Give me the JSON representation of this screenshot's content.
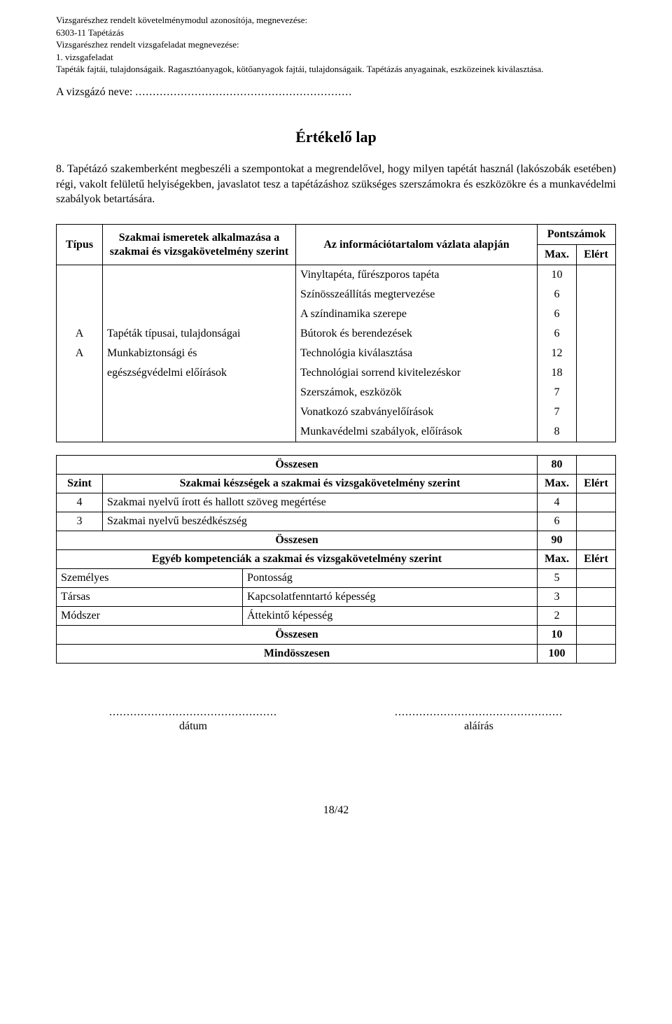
{
  "header": {
    "line1": "Vizsgarészhez rendelt követelménymodul azonosítója, megnevezése:",
    "line2": "6303-11 Tapétázás",
    "line3": "Vizsgarészhez rendelt vizsgafeladat megnevezése:",
    "line4": "1. vizsgafeladat",
    "line5": "Tapéták fajtái, tulajdonságaik. Ragasztóanyagok, kötőanyagok fajtái, tulajdonságaik. Tapétázás anyagainak, eszközeinek kiválasztása."
  },
  "candidate_label": "A vizsgázó neve:",
  "candidate_dotted": "..............................................................",
  "title": "Értékelő lap",
  "task": "8. Tapétázó szakemberként megbeszéli a szempontokat a megrendelővel, hogy milyen tapétát használ (lakószobák esetében) régi, vakolt felületű helyiségekben, javaslatot tesz a tapétázáshoz szükséges szerszámokra és eszközökre és a munkavédelmi szabályok betartására.",
  "t1": {
    "h_tip": "Típus",
    "h_sz": "Szakmai ismeretek alkalmazása a szakmai és vizsgakövetelmény szerint",
    "h_info": "Az információtartalom vázlata alapján",
    "h_pont": "Pontszámok",
    "h_max": "Max.",
    "h_el": "Elért",
    "rows": [
      {
        "tip": "",
        "sz": "",
        "info": "Vinyltapéta, fűrészporos tapéta",
        "max": "10"
      },
      {
        "tip": "",
        "sz": "",
        "info": "Színösszeállítás megtervezése",
        "max": "6"
      },
      {
        "tip": "",
        "sz": "",
        "info": "A színdinamika szerepe",
        "max": "6"
      },
      {
        "tip": "A",
        "sz": "Tapéták típusai, tulajdonságai",
        "info": "Bútorok és berendezések",
        "max": "6"
      },
      {
        "tip": "A",
        "sz": "Munkabiztonsági és",
        "info": "Technológia kiválasztása",
        "max": "12"
      },
      {
        "tip": "",
        "sz": "egészségvédelmi előírások",
        "info": "Technológiai sorrend kivitelezéskor",
        "max": "18"
      },
      {
        "tip": "",
        "sz": "",
        "info": "Szerszámok, eszközök",
        "max": "7"
      },
      {
        "tip": "",
        "sz": "",
        "info": "Vonatkozó szabványelőírások",
        "max": "7"
      },
      {
        "tip": "",
        "sz": "",
        "info": "Munkavédelmi szabályok, előírások",
        "max": "8"
      }
    ]
  },
  "t2": {
    "h_szint": "Szint",
    "h_ossz": "Összesen",
    "h_sk": "Szakmai készségek a szakmai és vizsgakövetelmény szerint",
    "h_max": "Max.",
    "h_el": "Elért",
    "r_ossz_sk": "80",
    "rows_sk": [
      {
        "szint": "4",
        "text": "Szakmai nyelvű írott és hallott szöveg megértése",
        "max": "4"
      },
      {
        "szint": "3",
        "text": "Szakmai nyelvű beszédkészség",
        "max": "6"
      }
    ],
    "r_ossz_sk2": "90",
    "h_egyeb": "Egyéb kompetenciák a szakmai és vizsgakövetelmény szerint",
    "rows_eg": [
      {
        "left": "Személyes",
        "right": "Pontosság",
        "max": "5"
      },
      {
        "left": "Társas",
        "right": "Kapcsolatfenntartó képesség",
        "max": "3"
      },
      {
        "left": "Módszer",
        "right": "Áttekintő képesség",
        "max": "2"
      }
    ],
    "r_ossz_eg": "10",
    "r_mind": "100",
    "mind_label": "Mindösszesen"
  },
  "sig": {
    "dotted": "................................................",
    "date": "dátum",
    "sign": "aláírás"
  },
  "pagenum": "18/42"
}
